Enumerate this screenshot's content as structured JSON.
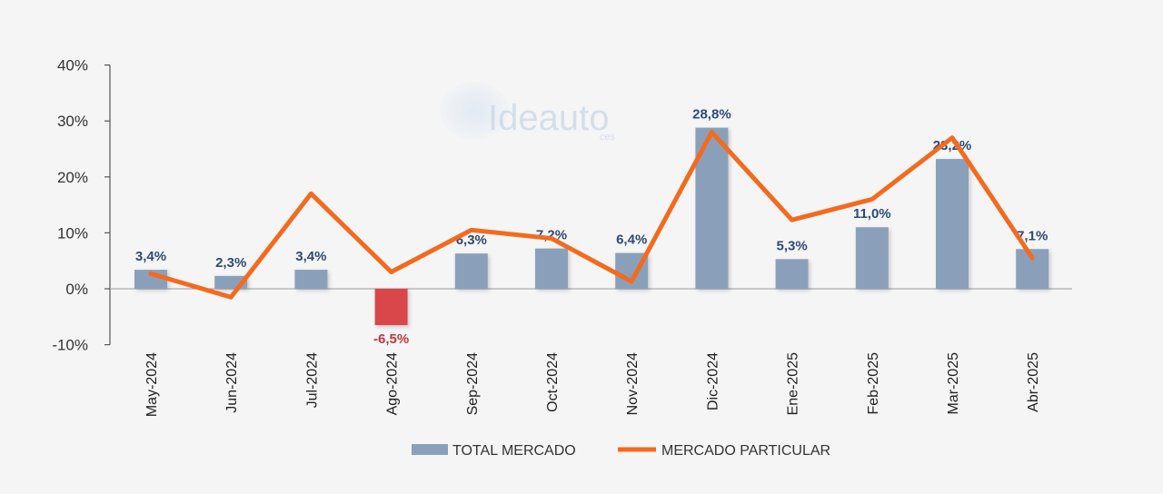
{
  "chart_data": {
    "type": "bar",
    "categories": [
      "May-2024",
      "Jun-2024",
      "Jul-2024",
      "Ago-2024",
      "Sep-2024",
      "Oct-2024",
      "Nov-2024",
      "Dic-2024",
      "Ene-2025",
      "Feb-2025",
      "Mar-2025",
      "Abr-2025"
    ],
    "series": [
      {
        "name": "TOTAL MERCADO",
        "kind": "bar",
        "values": [
          3.4,
          2.3,
          3.4,
          -6.5,
          6.3,
          7.2,
          6.4,
          28.8,
          5.3,
          11.0,
          23.2,
          7.1
        ],
        "labels": [
          "3,4%",
          "2,3%",
          "3,4%",
          "-6,5%",
          "6,3%",
          "7,2%",
          "6,4%",
          "28,8%",
          "5,3%",
          "11,0%",
          "23,2%",
          "7,1%"
        ]
      },
      {
        "name": "MERCADO PARTICULAR",
        "kind": "line",
        "values": [
          2.7,
          -1.5,
          17.0,
          3.0,
          10.5,
          9.0,
          1.3,
          28.0,
          12.3,
          16.0,
          27.0,
          5.5
        ]
      }
    ],
    "y_ticks": [
      {
        "value": 40,
        "label": "40%"
      },
      {
        "value": 30,
        "label": "30%"
      },
      {
        "value": 20,
        "label": "20%"
      },
      {
        "value": 10,
        "label": "10%"
      },
      {
        "value": 0,
        "label": "0%"
      },
      {
        "value": -10,
        "label": "-10%"
      }
    ],
    "ylim": [
      -10,
      40
    ],
    "grid": false,
    "legend_position": "bottom-center",
    "colors": {
      "bar": "#8aa0ba",
      "bar_negative": "#d9474c",
      "line": "#f46a1e",
      "label_positive": "#2e4a78",
      "label_negative": "#c0393b",
      "tick_negative": "#d33a3a",
      "axis": "#555555"
    }
  },
  "watermark": {
    "text": "Ideauto",
    "sub": "ces"
  }
}
